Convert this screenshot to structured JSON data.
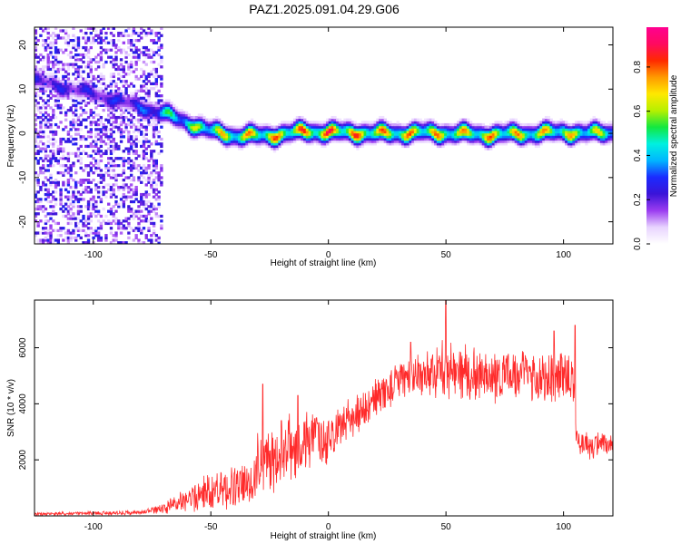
{
  "figure": {
    "title": "PAZ1.2025.091.04.29.G06"
  },
  "chart_data": [
    {
      "type": "heatmap",
      "xlabel": "Height of straight line (km)",
      "ylabel": "Frequency (Hz)",
      "xlim": [
        -125,
        121
      ],
      "ylim": [
        -25,
        24
      ],
      "xticks": [
        -100,
        -50,
        0,
        50,
        100
      ],
      "yticks": [
        -20,
        -10,
        0,
        10,
        20
      ],
      "colorbar": {
        "label": "Normalized spectral amplitude",
        "range": [
          0.0,
          0.98
        ],
        "ticks": [
          0.0,
          0.2,
          0.4,
          0.6,
          0.8
        ],
        "colors": [
          "#ffffff",
          "#e8d4ff",
          "#9b3cf0",
          "#3a14d8",
          "#1b2bff",
          "#00b6ff",
          "#00f0e0",
          "#12e840",
          "#b7f000",
          "#ffe800",
          "#ff9a00",
          "#ff2a00",
          "#ff0a60",
          "#ff0090"
        ]
      },
      "ridge": {
        "x": [
          -125,
          -100,
          -80,
          -70,
          -60,
          -50,
          -40,
          -25,
          -10,
          0,
          10,
          25,
          40,
          55,
          70,
          85,
          100,
          110,
          121
        ],
        "y": [
          12,
          9,
          6,
          4.5,
          2.5,
          0.5,
          -0.5,
          -0.5,
          0.5,
          0.3,
          0.2,
          0.0,
          0.2,
          0.0,
          -0.3,
          0.0,
          0.3,
          0.0,
          0.3
        ],
        "peak": [
          0.3,
          0.3,
          0.35,
          0.55,
          0.65,
          0.75,
          0.8,
          0.85,
          0.9,
          0.95,
          0.9,
          0.85,
          0.85,
          0.8,
          0.85,
          0.8,
          0.8,
          0.75,
          0.7
        ],
        "halfwidth_hz": 1.6
      },
      "noise_region_x": [
        -125,
        -70
      ]
    },
    {
      "type": "line",
      "xlabel": "Height of straight line (km)",
      "ylabel": "SNR (10 * v/v)",
      "xlim": [
        -125,
        121
      ],
      "ylim": [
        0,
        7700
      ],
      "xticks": [
        -100,
        -50,
        0,
        50,
        100
      ],
      "yticks": [
        2000,
        4000,
        6000
      ],
      "color": "#ff2a2a",
      "series": [
        {
          "envelope_x": [
            -125,
            -100,
            -80,
            -70,
            -60,
            -50,
            -40,
            -33,
            -30,
            -25,
            -15,
            -5,
            0,
            10,
            20,
            30,
            40,
            50,
            60,
            70,
            80,
            90,
            100,
            104,
            106,
            110,
            121
          ],
          "envelope_mean": [
            60,
            90,
            120,
            250,
            600,
            900,
            1000,
            1100,
            2000,
            1900,
            2500,
            2700,
            2800,
            3500,
            4200,
            4800,
            5100,
            5200,
            5100,
            5000,
            5000,
            5000,
            5000,
            5000,
            2600,
            2500,
            2500
          ],
          "envelope_spread": [
            50,
            60,
            70,
            150,
            400,
            600,
            700,
            700,
            900,
            1000,
            1000,
            1000,
            700,
            600,
            600,
            600,
            700,
            900,
            800,
            800,
            800,
            800,
            900,
            900,
            400,
            400,
            400
          ],
          "spikes": [
            [
              -28,
              4700
            ],
            [
              -20,
              3400
            ],
            [
              -13,
              4300
            ],
            [
              -5,
              3500
            ],
            [
              50,
              7700
            ],
            [
              35,
              6200
            ],
            [
              105,
              6800
            ],
            [
              96,
              6600
            ]
          ]
        }
      ]
    }
  ]
}
